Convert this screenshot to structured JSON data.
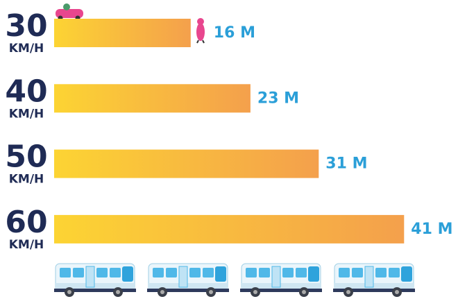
{
  "chart_data": {
    "type": "bar",
    "orientation": "horizontal",
    "categories": [
      "30",
      "40",
      "50",
      "60"
    ],
    "unit": "KM/H",
    "values": [
      16,
      23,
      31,
      41
    ],
    "value_labels": [
      "16 M",
      "23 M",
      "31 M",
      "41 M"
    ],
    "colors": [
      "#fcd433",
      "#f4a04c"
    ],
    "label_color": "#2b9fd8"
  }
}
